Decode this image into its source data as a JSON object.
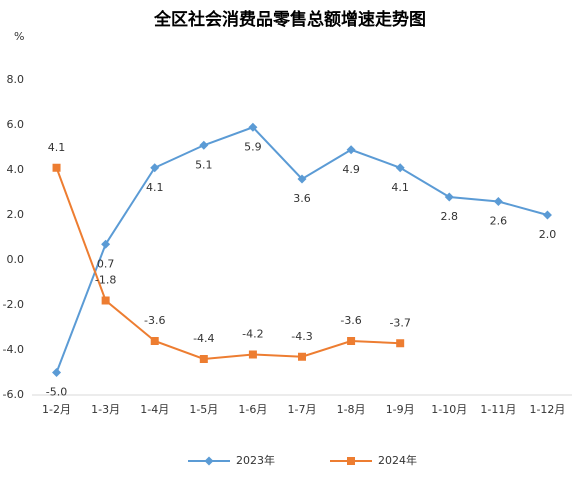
{
  "chart_data": {
    "type": "line",
    "title": "全区社会消费品零售总额增速走势图",
    "y_label": "%",
    "categories": [
      "1-2月",
      "1-3月",
      "1-4月",
      "1-5月",
      "1-6月",
      "1-7月",
      "1-8月",
      "1-9月",
      "1-10月",
      "1-11月",
      "1-12月"
    ],
    "series": [
      {
        "name": "2023年",
        "color": "#5b9bd5",
        "marker": "diamond",
        "values": [
          -5.0,
          0.7,
          4.1,
          5.1,
          5.9,
          3.6,
          4.9,
          4.1,
          2.8,
          2.6,
          2.0
        ],
        "value_labels": [
          "-5.0",
          "0.7",
          "4.1",
          "5.1",
          "5.9",
          "3.6",
          "4.9",
          "4.1",
          "2.8",
          "2.6",
          "2.0"
        ]
      },
      {
        "name": "2024年",
        "color": "#ed7d31",
        "marker": "square",
        "values": [
          4.1,
          -1.8,
          -3.6,
          -4.4,
          -4.2,
          -4.3,
          -3.6,
          -3.7,
          null,
          null,
          null
        ],
        "value_labels": [
          "4.1",
          "-1.8",
          "-3.6",
          "-4.4",
          "-4.2",
          "-4.3",
          "-3.6",
          "-3.7",
          null,
          null,
          null
        ]
      }
    ],
    "ylim": [
      -6,
      8
    ],
    "yticks": [
      {
        "value": -6,
        "label": "-6.0"
      },
      {
        "value": -4,
        "label": "-4.0"
      },
      {
        "value": -2,
        "label": "-2.0"
      },
      {
        "value": 0,
        "label": "0.0"
      },
      {
        "value": 2,
        "label": "2.0"
      },
      {
        "value": 4,
        "label": "4.0"
      },
      {
        "value": 6,
        "label": "6.0"
      },
      {
        "value": 8,
        "label": "8.0"
      }
    ],
    "grid": false,
    "legend": "bottom"
  }
}
